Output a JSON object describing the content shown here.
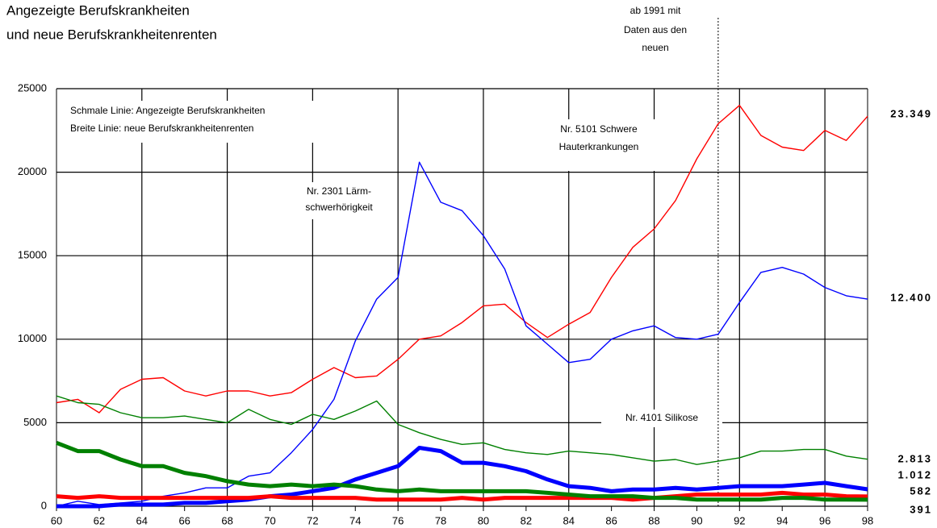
{
  "chart_data": {
    "type": "line",
    "title": [
      "Angezeigte Berufskrankheiten",
      "und neue Berufskrankheitenrenten"
    ],
    "x": [
      60,
      61,
      62,
      63,
      64,
      65,
      66,
      67,
      68,
      69,
      70,
      71,
      72,
      73,
      74,
      75,
      76,
      77,
      78,
      79,
      80,
      81,
      82,
      83,
      84,
      85,
      86,
      87,
      88,
      89,
      90,
      91,
      92,
      93,
      94,
      95,
      96,
      97,
      98
    ],
    "xlim": [
      60,
      98
    ],
    "xticks": [
      60,
      62,
      64,
      66,
      68,
      70,
      72,
      74,
      76,
      78,
      80,
      82,
      84,
      86,
      88,
      90,
      92,
      94,
      96,
      98
    ],
    "ylim": [
      0,
      25000
    ],
    "yticks": [
      0,
      5000,
      10000,
      15000,
      20000,
      25000
    ],
    "grid": true,
    "series": [
      {
        "color": "#ff0000",
        "width": "thin",
        "values": [
          6200,
          6400,
          5600,
          7000,
          7600,
          7700,
          6900,
          6600,
          6900,
          6900,
          6600,
          6800,
          7600,
          8300,
          7700,
          7800,
          8800,
          10000,
          10200,
          11000,
          12000,
          12100,
          11000,
          10100,
          10900,
          11600,
          13700,
          15500,
          16600,
          18300,
          20800,
          22900,
          24000,
          22200,
          21500,
          21300,
          22500,
          21900,
          23349
        ],
        "value_labels": [
          null,
          null,
          null,
          null,
          null,
          null,
          null,
          null,
          null,
          null,
          null,
          null,
          null,
          null,
          null,
          null,
          null,
          null,
          null,
          null,
          null,
          null,
          null,
          null,
          null,
          null,
          null,
          null,
          null,
          null,
          null,
          null,
          null,
          null,
          null,
          null,
          null,
          null,
          "23.349"
        ]
      },
      {
        "color": "#0000ff",
        "width": "thin",
        "values": [
          0,
          300,
          100,
          200,
          300,
          600,
          800,
          1100,
          1100,
          1800,
          2000,
          3200,
          4600,
          6400,
          9900,
          12400,
          13700,
          20600,
          18200,
          17700,
          16200,
          14200,
          10800,
          9700,
          8600,
          8800,
          10000,
          10500,
          10800,
          10100,
          10000,
          10300,
          12200,
          14000,
          14300,
          13900,
          13100,
          12600,
          12400
        ],
        "value_labels": [
          null,
          null,
          null,
          null,
          null,
          null,
          null,
          null,
          null,
          null,
          null,
          null,
          null,
          null,
          null,
          null,
          null,
          null,
          null,
          null,
          null,
          null,
          null,
          null,
          null,
          null,
          null,
          null,
          null,
          null,
          null,
          null,
          null,
          null,
          null,
          null,
          null,
          null,
          "12.400"
        ]
      },
      {
        "color": "#008000",
        "width": "thin",
        "values": [
          6600,
          6200,
          6100,
          5600,
          5300,
          5300,
          5400,
          5200,
          5000,
          5800,
          5200,
          4900,
          5500,
          5200,
          5700,
          6300,
          4900,
          4400,
          4000,
          3700,
          3800,
          3400,
          3200,
          3100,
          3300,
          3200,
          3100,
          2900,
          2700,
          2800,
          2500,
          2700,
          2900,
          3300,
          3300,
          3400,
          3400,
          3000,
          2813
        ],
        "value_labels": [
          null,
          null,
          null,
          null,
          null,
          null,
          null,
          null,
          null,
          null,
          null,
          null,
          null,
          null,
          null,
          null,
          null,
          null,
          null,
          null,
          null,
          null,
          null,
          null,
          null,
          null,
          null,
          null,
          null,
          null,
          null,
          null,
          null,
          null,
          null,
          null,
          null,
          null,
          "2.813"
        ]
      },
      {
        "color": "#0000ff",
        "width": "thick",
        "values": [
          0,
          0,
          0,
          100,
          100,
          100,
          200,
          200,
          300,
          400,
          600,
          700,
          900,
          1100,
          1600,
          2000,
          2400,
          3500,
          3300,
          2600,
          2600,
          2400,
          2100,
          1600,
          1200,
          1100,
          900,
          1000,
          1000,
          1100,
          1000,
          1100,
          1200,
          1200,
          1200,
          1300,
          1400,
          1200,
          1012
        ],
        "value_labels": [
          null,
          null,
          null,
          null,
          null,
          null,
          null,
          null,
          null,
          null,
          null,
          null,
          null,
          null,
          null,
          null,
          null,
          null,
          null,
          null,
          null,
          null,
          null,
          null,
          null,
          null,
          null,
          null,
          null,
          null,
          null,
          null,
          null,
          null,
          null,
          null,
          null,
          null,
          "1.012"
        ]
      },
      {
        "color": "#ff0000",
        "width": "thick",
        "values": [
          600,
          500,
          600,
          500,
          500,
          500,
          500,
          500,
          500,
          500,
          600,
          500,
          500,
          500,
          500,
          400,
          400,
          400,
          400,
          500,
          400,
          500,
          500,
          500,
          500,
          500,
          500,
          400,
          500,
          600,
          700,
          700,
          700,
          700,
          800,
          700,
          700,
          600,
          582
        ],
        "value_labels": [
          null,
          null,
          null,
          null,
          null,
          null,
          null,
          null,
          null,
          null,
          null,
          null,
          null,
          null,
          null,
          null,
          null,
          null,
          null,
          null,
          null,
          null,
          null,
          null,
          null,
          null,
          null,
          null,
          null,
          null,
          null,
          null,
          null,
          null,
          null,
          null,
          null,
          null,
          "582"
        ]
      },
      {
        "color": "#008000",
        "width": "thick",
        "values": [
          3800,
          3300,
          3300,
          2800,
          2400,
          2400,
          2000,
          1800,
          1500,
          1300,
          1200,
          1300,
          1200,
          1300,
          1200,
          1000,
          900,
          1000,
          900,
          900,
          900,
          900,
          900,
          800,
          700,
          600,
          600,
          600,
          500,
          500,
          400,
          400,
          400,
          400,
          500,
          500,
          400,
          400,
          391
        ],
        "value_labels": [
          null,
          null,
          null,
          null,
          null,
          null,
          null,
          null,
          null,
          null,
          null,
          null,
          null,
          null,
          null,
          null,
          null,
          null,
          null,
          null,
          null,
          null,
          null,
          null,
          null,
          null,
          null,
          null,
          null,
          null,
          null,
          null,
          null,
          null,
          null,
          null,
          null,
          null,
          "391"
        ]
      }
    ],
    "annotations": [
      {
        "lines": [
          "Schmale Linie: Angezeigte Berufskrankheiten",
          "Breite Linie:    neue Berufskrankheitenrenten"
        ]
      },
      {
        "lines": [
          "Nr. 5101 Schwere",
          "Hauterkrankungen"
        ]
      },
      {
        "lines": [
          "Nr. 2301 Lärm-",
          "schwerhörigkeit"
        ]
      },
      {
        "lines": [
          "Nr. 4101 Silikose"
        ]
      },
      {
        "lines": [
          "ab 1991 mit",
          "Daten aus den",
          "neuen"
        ],
        "x": 91
      }
    ]
  }
}
